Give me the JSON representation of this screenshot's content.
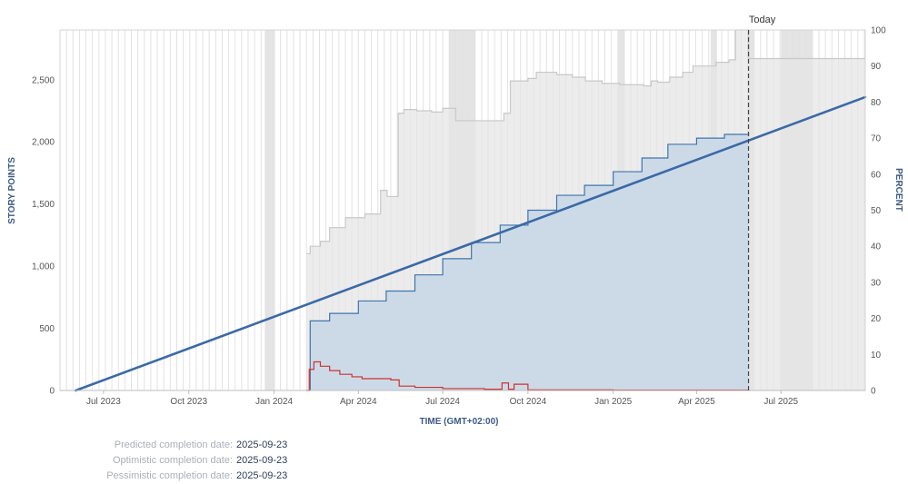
{
  "chart_data": {
    "type": "area",
    "y_title": "STORY POINTS",
    "y2_title": "PERCENT",
    "x_title": "TIME (GMT+02:00)",
    "today_label": "Today",
    "today_date": "2025-05-27",
    "x_range": [
      "2023-05-15",
      "2025-09-30"
    ],
    "ylim": [
      0,
      2900
    ],
    "y2lim": [
      0,
      100
    ],
    "y_ticks": [
      0,
      500,
      1000,
      1500,
      2000,
      2500
    ],
    "y_tick_labels": [
      "0",
      "500",
      "1,000",
      "1,500",
      "2,000",
      "2,500"
    ],
    "y2_ticks": [
      0,
      10,
      20,
      30,
      40,
      50,
      60,
      70,
      80,
      90,
      100
    ],
    "y2_tick_labels": [
      "0",
      "10",
      "20",
      "30",
      "40",
      "50",
      "60",
      "70",
      "80",
      "90",
      "100"
    ],
    "x_ticks": [
      "2023-07-01",
      "2023-10-01",
      "2024-01-01",
      "2024-04-01",
      "2024-07-01",
      "2024-10-01",
      "2025-01-01",
      "2025-04-01",
      "2025-07-01"
    ],
    "x_tick_labels": [
      "Jul 2023",
      "Oct 2023",
      "Jan 2024",
      "Apr 2024",
      "Jul 2024",
      "Oct 2024",
      "Jan 2025",
      "Apr 2025",
      "Jul 2025"
    ],
    "grid": "vertical",
    "colors": {
      "scope_fill": "#e6e6e6",
      "scope_line": "#c8c8c8",
      "completed_fill": "#c9d8e8",
      "completed_line": "#3f74ad",
      "trend_line": "#3a6aa6",
      "remaining_line": "#d0312a",
      "today_line": "#444444",
      "nonworking_band": "#e4e4e4"
    },
    "nonworking_periods": [
      [
        "2023-12-22",
        "2024-01-02"
      ],
      [
        "2024-07-08",
        "2024-08-05"
      ],
      [
        "2025-01-06",
        "2025-01-13"
      ],
      [
        "2025-04-16",
        "2025-04-23"
      ],
      [
        "2025-05-26",
        "2025-06-02"
      ],
      [
        "2025-07-01",
        "2025-08-04"
      ]
    ],
    "series": [
      {
        "key": "scope",
        "type": "step-area",
        "x": [
          "2024-02-05",
          "2024-02-09",
          "2024-02-20",
          "2024-03-01",
          "2024-03-18",
          "2024-04-08",
          "2024-04-25",
          "2024-05-02",
          "2024-05-14",
          "2024-05-20",
          "2024-06-03",
          "2024-06-19",
          "2024-07-01",
          "2024-07-15",
          "2024-08-22",
          "2024-09-05",
          "2024-09-12",
          "2024-10-01",
          "2024-10-10",
          "2024-11-01",
          "2024-11-18",
          "2024-12-02",
          "2024-12-20",
          "2025-01-08",
          "2025-02-03",
          "2025-02-11",
          "2025-02-18",
          "2025-03-03",
          "2025-03-17",
          "2025-03-28",
          "2025-04-22",
          "2025-05-06",
          "2025-05-13",
          "2025-05-27",
          "2025-09-30"
        ],
        "values": [
          1100,
          1160,
          1200,
          1310,
          1390,
          1420,
          1610,
          1560,
          2230,
          2260,
          2250,
          2240,
          2270,
          2170,
          2170,
          2230,
          2490,
          2510,
          2560,
          2540,
          2520,
          2490,
          2470,
          2460,
          2450,
          2490,
          2480,
          2520,
          2560,
          2610,
          2640,
          2660,
          2900,
          2670,
          2670
        ]
      },
      {
        "key": "completed",
        "type": "step-area",
        "x": [
          "2024-02-05",
          "2024-02-09",
          "2024-03-01",
          "2024-04-01",
          "2024-05-01",
          "2024-06-01",
          "2024-07-01",
          "2024-08-01",
          "2024-09-01",
          "2024-10-01",
          "2024-11-01",
          "2024-12-01",
          "2025-01-01",
          "2025-02-01",
          "2025-03-01",
          "2025-04-01",
          "2025-05-01",
          "2025-05-27"
        ],
        "values": [
          0,
          560,
          620,
          720,
          800,
          930,
          1060,
          1190,
          1330,
          1450,
          1570,
          1650,
          1760,
          1870,
          1980,
          2030,
          2060,
          2070
        ]
      },
      {
        "key": "remaining",
        "type": "step-line",
        "x": [
          "2024-02-05",
          "2024-02-08",
          "2024-02-13",
          "2024-02-20",
          "2024-03-01",
          "2024-03-12",
          "2024-03-25",
          "2024-04-05",
          "2024-05-06",
          "2024-05-15",
          "2024-06-01",
          "2024-07-01",
          "2024-08-15",
          "2024-09-03",
          "2024-09-10",
          "2024-09-16",
          "2024-10-01",
          "2024-11-01",
          "2025-01-01",
          "2025-05-27"
        ],
        "values": [
          0,
          170,
          230,
          195,
          160,
          130,
          110,
          95,
          85,
          35,
          25,
          15,
          10,
          60,
          10,
          50,
          5,
          5,
          3,
          0
        ]
      },
      {
        "key": "trend",
        "type": "line",
        "x": [
          "2023-06-01",
          "2025-09-30"
        ],
        "values": [
          0,
          2360
        ]
      }
    ]
  },
  "completion": {
    "predicted_label": "Predicted completion date:",
    "predicted_value": "2025-09-23",
    "optimistic_label": "Optimistic completion date:",
    "optimistic_value": "2025-09-23",
    "pessimistic_label": "Pessimistic completion date:",
    "pessimistic_value": "2025-09-23"
  }
}
